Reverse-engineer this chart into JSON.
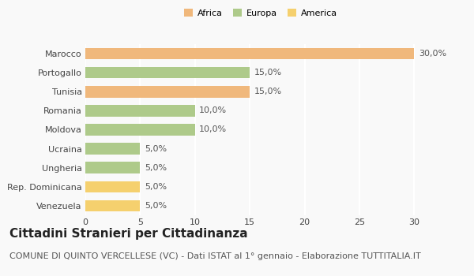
{
  "categories": [
    "Venezuela",
    "Rep. Dominicana",
    "Ungheria",
    "Ucraina",
    "Moldova",
    "Romania",
    "Tunisia",
    "Portogallo",
    "Marocco"
  ],
  "values": [
    5.0,
    5.0,
    5.0,
    5.0,
    10.0,
    10.0,
    15.0,
    15.0,
    30.0
  ],
  "colors": [
    "#F5D06E",
    "#F5D06E",
    "#AECA8A",
    "#AECA8A",
    "#AECA8A",
    "#AECA8A",
    "#F0B87C",
    "#AECA8A",
    "#F0B87C"
  ],
  "labels": [
    "5,0%",
    "5,0%",
    "5,0%",
    "5,0%",
    "10,0%",
    "10,0%",
    "15,0%",
    "15,0%",
    "30,0%"
  ],
  "legend_entries": [
    {
      "label": "Africa",
      "color": "#F0B87C"
    },
    {
      "label": "Europa",
      "color": "#AECA8A"
    },
    {
      "label": "America",
      "color": "#F5D06E"
    }
  ],
  "xlim": [
    0,
    32
  ],
  "xticks": [
    0,
    5,
    10,
    15,
    20,
    25,
    30
  ],
  "title": "Cittadini Stranieri per Cittadinanza",
  "subtitle": "COMUNE DI QUINTO VERCELLESE (VC) - Dati ISTAT al 1° gennaio - Elaborazione TUTTITALIA.IT",
  "background_color": "#F9F9F9",
  "grid_color": "#FFFFFF",
  "bar_height": 0.6,
  "title_fontsize": 11,
  "subtitle_fontsize": 8,
  "label_fontsize": 8,
  "tick_fontsize": 8
}
